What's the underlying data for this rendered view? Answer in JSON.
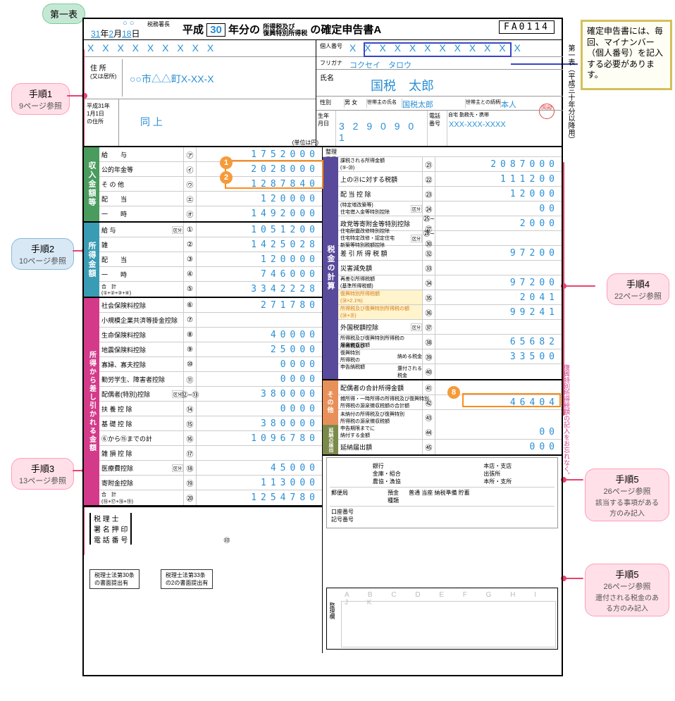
{
  "doc_code": "FA0114",
  "era": "平成",
  "year": "30",
  "form_type": "A",
  "tax_office_label": "税務署長",
  "date": {
    "y": "31",
    "m": "2",
    "d": "18"
  },
  "circles": "○ ○",
  "title_tax": "所得税及び\n復興特別所得税",
  "title_kakutei": "の確定申告書",
  "address_label": "住 所",
  "address_sub": "(又は居所)",
  "address": "○○市△△町X-XX-X",
  "jan1_label": "平成31年\n1月1日\nの住所",
  "jan1": "同 上",
  "kojin_label": "個人番号",
  "furigana_label": "フリガナ",
  "furigana": "コクセイ　タロウ",
  "name_label": "氏名",
  "name": "国税　太郎",
  "stamp": "国税",
  "sex_label": "性別",
  "sex": "男 女",
  "head_label": "世帯主の氏名",
  "head": "国税太郎",
  "rel_label": "世帯主との続柄",
  "rel": "本人",
  "birth_label": "生年\n月日",
  "birth": "3 2 9 0 9 0 1",
  "tel_label": "電話\n番号",
  "tel_cat": "自宅 勤務先・携帯",
  "tel": "XXX-XXX-XXXX",
  "unit": "(単位は円)",
  "seiri": "整理\n番号",
  "tabs": {
    "income": "収入金額等",
    "shotoku": "所得金額",
    "deduct": "所得から差し引かれる金額",
    "tax": "税金の計算",
    "other": "その他",
    "ennou": "延納の届出"
  },
  "L": [
    {
      "l": "給　　与",
      "c": "㋐",
      "v": "1752000"
    },
    {
      "l": "公的年金等",
      "c": "㋑",
      "v": "2028000",
      "sub": "雑"
    },
    {
      "l": "そ の 他",
      "c": "㋒",
      "v": "1287840"
    },
    {
      "l": "配　　当",
      "c": "㋓",
      "v": "120000"
    },
    {
      "l": "一　　時",
      "c": "㋔",
      "v": "1492000"
    }
  ],
  "L2": [
    {
      "l": "給 与",
      "c": "①",
      "v": "1051200",
      "ex": "区分"
    },
    {
      "l": "雑",
      "c": "②",
      "v": "1425028"
    },
    {
      "l": "配　　当",
      "c": "③",
      "v": "120000"
    },
    {
      "l": "一　　時",
      "c": "④",
      "v": "746000"
    },
    {
      "l": "合　計\n(①+②+③+④)",
      "c": "⑤",
      "v": "3342228"
    }
  ],
  "L3": [
    {
      "l": "社会保険料控除",
      "c": "⑥",
      "v": "271780"
    },
    {
      "l": "小規模企業共済等掛金控除",
      "c": "⑦",
      "v": ""
    },
    {
      "l": "生命保険料控除",
      "c": "⑧",
      "v": "40000"
    },
    {
      "l": "地震保険料控除",
      "c": "⑨",
      "v": "25000"
    },
    {
      "l": "寡婦、寡夫控除",
      "c": "⑩",
      "v": "0000"
    },
    {
      "l": "勤労学生、障害者控除",
      "c": "⑪",
      "v": "0000"
    },
    {
      "l": "配偶者(特別)控除",
      "c": "⑫~⑬",
      "v": "380000",
      "ex": "区分"
    },
    {
      "l": "扶 養 控 除",
      "c": "⑭",
      "v": "0000"
    },
    {
      "l": "基 礎 控 除",
      "c": "⑮",
      "v": "380000"
    },
    {
      "l": "⑥から⑮までの計",
      "c": "⑯",
      "v": "1096780"
    },
    {
      "l": "雑 損 控 除",
      "c": "⑰",
      "v": ""
    },
    {
      "l": "医療費控除",
      "c": "⑱",
      "v": "45000",
      "ex": "区分"
    },
    {
      "l": "寄附金控除",
      "c": "⑲",
      "v": "113000"
    },
    {
      "l": "合　計\n(⑯+⑰+⑱+⑲)",
      "c": "⑳",
      "v": "1254780"
    }
  ],
  "R": [
    {
      "l": "課税される所得金額\n(⑤-⑳)",
      "c": "㉑",
      "v": "2087000"
    },
    {
      "l": "上の㉑に対する税額",
      "c": "㉒",
      "v": "111200"
    },
    {
      "l": "配 当 控 除",
      "c": "㉓",
      "v": "12000"
    },
    {
      "l": "(特定増改築等)\n住宅借入金等特別控除",
      "c": "㉔",
      "v": "00",
      "ex": "区分"
    },
    {
      "l": "政党等寄附金等特別控除",
      "c": "㉕~㉗",
      "v": "2000"
    },
    {
      "l": "住宅耐震改修特別控除\n住宅特定改修・認定住宅\n新築等特別税額控除",
      "c": "㉘~㉚",
      "v": "",
      "ex": "区分"
    },
    {
      "l": "差 引 所 得 税 額",
      "c": "㉜",
      "v": "97200"
    },
    {
      "l": "災害減免額",
      "c": "㉝",
      "v": ""
    },
    {
      "l": "再差引所得税額\n(基準所得税額)",
      "c": "㉞",
      "v": "97200"
    },
    {
      "l": "復興特別所得税額\n(㉞×2.1%)",
      "c": "㉟",
      "v": "2041",
      "hl": 1
    },
    {
      "l": "所得税及び復興特別所得税の額\n(㉞+㉟)",
      "c": "㊱",
      "v": "99241",
      "hl": 1
    },
    {
      "l": "外国税額控除",
      "c": "㊲",
      "v": "",
      "ex": "区分"
    },
    {
      "l": "所得税及び復興特別所得税の\n源泉徴収税額",
      "c": "㊳",
      "v": "65682"
    },
    {
      "l": "所得税及び\n復興特別\n所得税の\n申告納税額",
      "c": "㊴",
      "v": "33500",
      "l2": "納める税金"
    },
    {
      "l": "",
      "c": "㊵",
      "v": "",
      "l2": "還付される\n税金"
    }
  ],
  "R2": [
    {
      "l": "配偶者の合計所得金額",
      "c": "㊶",
      "v": ""
    },
    {
      "l": "雑所得・一時所得の所得税及び復興特別\n所得税の源泉徴収税額の合計額",
      "c": "㊷",
      "v": "46404"
    },
    {
      "l": "未納付の所得税及び復興特別\n所得税の源泉徴収税額",
      "c": "㊸",
      "v": ""
    }
  ],
  "R3": [
    {
      "l": "申告期限までに\n納付する金額",
      "c": "㊹",
      "v": "00"
    },
    {
      "l": "延納届出額",
      "c": "㊺",
      "v": "000"
    }
  ],
  "callouts": {
    "top": "第一表",
    "s1": {
      "t": "手順1",
      "s": "9ページ参照"
    },
    "s2": {
      "t": "手順2",
      "s": "10ページ参照"
    },
    "s3": {
      "t": "手順3",
      "s": "13ページ参照"
    },
    "s4": {
      "t": "手順4",
      "s": "22ページ参照"
    },
    "s5": {
      "t": "手順5",
      "s": "26ページ参照",
      "s2": "該当する事項がある方のみ記入"
    },
    "s5b": {
      "t": "手順5",
      "s": "26ページ参照",
      "s2": "還付される税金のある方のみ記入"
    }
  },
  "mynumber": "確定申告書には、毎回、マイナンバー（個人番号）を記入する必要があります。",
  "side_black": "第一表（平成三十年分以降用）",
  "side_pink": "復興特別所得税額の記入をお忘れなく。",
  "bottom": {
    "zeirishi": "税 理 士\n署 名 押 印\n電 話 番 号",
    "b1": "税理士法第30条\nの書面提出有",
    "b2": "税理士法第33条\nの2の書面提出有"
  },
  "bank": {
    "l1": "銀行\n金庫・組合\n農協・漁協",
    "l2": "本店・支店\n出張所\n本所・支所",
    "post": "郵便局",
    "acc": "預金\n種類",
    "acc2": "普通 当座 納税準備 貯蓄",
    "kn": "口座番号\n記号番号"
  },
  "arrange_label": "整理欄",
  "arrange_cols": "A B C D E F G H I J K",
  "colors": {
    "blue": "#2a8fd4",
    "orange": "#f59b3a",
    "red": "#e8426e"
  }
}
